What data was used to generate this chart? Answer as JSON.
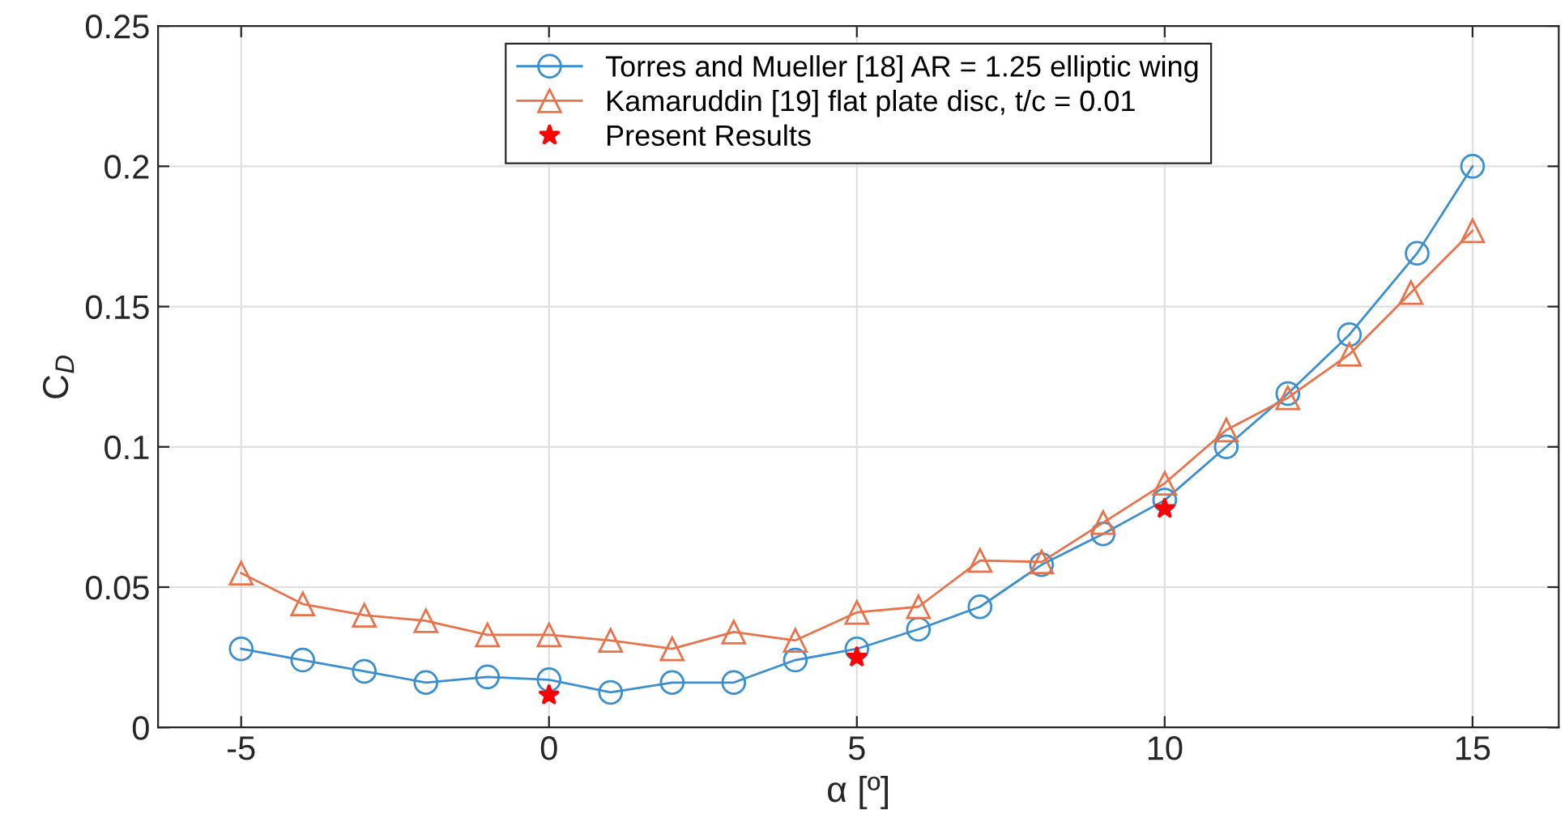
{
  "chart_data": {
    "type": "line",
    "xlabel": "α [º]",
    "ylabel": "C$_{D}$",
    "xlim": [
      -6.35,
      16.4
    ],
    "ylim": [
      0,
      0.25
    ],
    "xticks": [
      -5,
      0,
      5,
      10,
      15
    ],
    "yticks": [
      0,
      0.05,
      0.1,
      0.15,
      0.2,
      0.25
    ],
    "grid": true,
    "legend": "top",
    "line_style": "solid",
    "series": [
      {
        "name": "Torres and Mueller [18] AR = 1.25 elliptic wing",
        "color": "#3a8fd0",
        "marker": "circle",
        "x": [
          -5,
          -4,
          -3,
          -2,
          -1,
          0,
          1,
          2,
          3,
          4,
          5,
          6,
          7,
          8,
          9,
          10,
          11,
          12,
          13,
          14.1,
          15
        ],
        "values": [
          0.028,
          0.024,
          0.02,
          0.016,
          0.018,
          0.017,
          0.0125,
          0.016,
          0.016,
          0.024,
          0.028,
          0.035,
          0.043,
          0.058,
          0.069,
          0.081,
          0.1,
          0.119,
          0.14,
          0.169,
          0.2
        ]
      },
      {
        "name": "Kamaruddin [19] flat plate disc, t/c = 0.01",
        "color": "#e8734a",
        "marker": "triangle",
        "x": [
          -5,
          -4,
          -3,
          -2,
          -1,
          0,
          1,
          2,
          3,
          4,
          5,
          6,
          7,
          8,
          9,
          10,
          11,
          12,
          13,
          14,
          15
        ],
        "values": [
          0.055,
          0.044,
          0.04,
          0.038,
          0.033,
          0.033,
          0.031,
          0.028,
          0.034,
          0.031,
          0.041,
          0.043,
          0.0595,
          0.059,
          0.073,
          0.087,
          0.106,
          0.1175,
          0.133,
          0.155,
          0.177
        ]
      },
      {
        "name": "Present Results",
        "type": "scatter",
        "color": "#ff0000",
        "marker": "star",
        "x": [
          0,
          5,
          10
        ],
        "values": [
          0.0115,
          0.025,
          0.078
        ]
      }
    ]
  }
}
